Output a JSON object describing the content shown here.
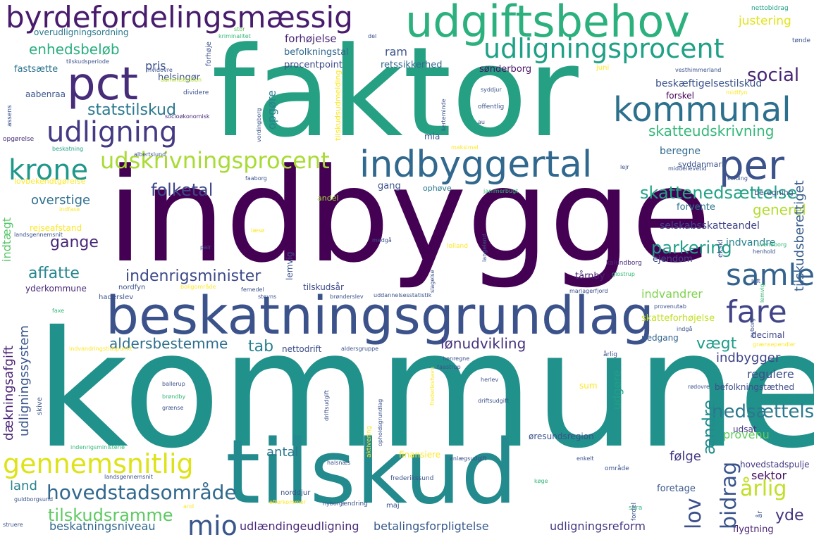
{
  "words": [
    {
      "text": "kommune",
      "color": "#21918c"
    },
    {
      "text": "indbygge",
      "color": "#440154"
    },
    {
      "text": "faktor",
      "color": "#26a083"
    },
    {
      "text": "tilskud",
      "color": "#238a8d"
    },
    {
      "text": "beskatningsgrundlag",
      "color": "#3b528b"
    },
    {
      "text": "udgiftsbehov",
      "color": "#2cb17e"
    },
    {
      "text": "byrdefordelingsmæssig",
      "color": "#481b6d"
    },
    {
      "text": "indbyggertal",
      "color": "#31688e"
    },
    {
      "text": "pct",
      "color": "#472c7a"
    },
    {
      "text": "udligningsprocent",
      "color": "#1fa187"
    },
    {
      "text": "kommunal",
      "color": "#2d708e"
    },
    {
      "text": "per",
      "color": "#3b528b"
    },
    {
      "text": "gennemsnitlig",
      "color": "#dde318"
    },
    {
      "text": "udskrivningsprocent",
      "color": "#a8db34"
    },
    {
      "text": "krone",
      "color": "#1f988b"
    },
    {
      "text": "udligning",
      "color": "#443a83"
    },
    {
      "text": "samle",
      "color": "#33638d"
    },
    {
      "text": "fare",
      "color": "#414487"
    },
    {
      "text": "mio",
      "color": "#39568c"
    },
    {
      "text": "hovedstadsområde",
      "color": "#31688e"
    },
    {
      "text": "statstilskud",
      "color": "#2a788e"
    },
    {
      "text": "social",
      "color": "#482475"
    },
    {
      "text": "nedsættelse",
      "color": "#2a788e"
    },
    {
      "text": "skattenedsættelse",
      "color": "#20a386"
    },
    {
      "text": "tilskudsramme",
      "color": "#5ec962"
    },
    {
      "text": "indenrigsminister",
      "color": "#3e4a89"
    },
    {
      "text": "skatteudskrivning",
      "color": "#35b779"
    },
    {
      "text": "folketal",
      "color": "#3f4788"
    },
    {
      "text": "parkering",
      "color": "#1f9e89"
    },
    {
      "text": "aldersbestemme",
      "color": "#2e6e8e"
    },
    {
      "text": "lønudvikling",
      "color": "#46327e"
    },
    {
      "text": "affatte",
      "color": "#24868e"
    },
    {
      "text": "gange",
      "color": "#482878"
    },
    {
      "text": "enhedsbeløb",
      "color": "#29af7f"
    },
    {
      "text": "bidrag",
      "color": "#3a548c"
    },
    {
      "text": "årlig",
      "color": "#c0df25"
    },
    {
      "text": "lov",
      "color": "#3c508b"
    },
    {
      "text": "ændre",
      "color": "#228c8d"
    },
    {
      "text": "tab",
      "color": "#26818e"
    },
    {
      "text": "vægt",
      "color": "#1e9c89"
    },
    {
      "text": "yde",
      "color": "#46337f"
    },
    {
      "text": "generel",
      "color": "#b2dd2d"
    },
    {
      "text": "overstige",
      "color": "#2e6f8e"
    },
    {
      "text": "forhøjelse",
      "color": "#482576"
    },
    {
      "text": "indbygger",
      "color": "#404688"
    },
    {
      "text": "regulere",
      "color": "#3d4e8a"
    },
    {
      "text": "land",
      "color": "#26828e"
    },
    {
      "text": "antal",
      "color": "#2a768e"
    },
    {
      "text": "følge",
      "color": "#443983"
    },
    {
      "text": "provenu",
      "color": "#62cb5f"
    },
    {
      "text": "sektor",
      "color": "#471063"
    },
    {
      "text": "ram",
      "color": "#3a538b"
    },
    {
      "text": "pris",
      "color": "#3b528b"
    },
    {
      "text": "justering",
      "color": "#e2e418"
    },
    {
      "text": "beregne",
      "color": "#30698e"
    },
    {
      "text": "udgøre",
      "color": "#1f9f88"
    },
    {
      "text": "selskabsskatteandel",
      "color": "#404588"
    },
    {
      "text": "tilskudsberettiget",
      "color": "#365d8d"
    },
    {
      "text": "dækningsafgift",
      "color": "#482173"
    },
    {
      "text": "udligningssystem",
      "color": "#39558c"
    },
    {
      "text": "indvandrer",
      "color": "#7fd34e"
    },
    {
      "text": "beskæftigelsestilskud",
      "color": "#3a538b"
    },
    {
      "text": "udlændingeudligning",
      "color": "#482979"
    },
    {
      "text": "betalingsforpligtelse",
      "color": "#38598c"
    },
    {
      "text": "udligningsreform",
      "color": "#453781"
    },
    {
      "text": "beskatningsniveau",
      "color": "#31678e"
    },
    {
      "text": "indtægt",
      "color": "#56c667"
    },
    {
      "text": "forskel",
      "color": "#440256"
    },
    {
      "text": "opgøre",
      "color": "#26828e"
    },
    {
      "text": "befolkningstal",
      "color": "#31678e"
    },
    {
      "text": "helsingør",
      "color": "#3b528b"
    },
    {
      "text": "fastsætte",
      "color": "#2c728e"
    },
    {
      "text": "aabenraa",
      "color": "#3a548c"
    },
    {
      "text": "procentpoint",
      "color": "#3e4c8a"
    },
    {
      "text": "retssikkerhed",
      "color": "#31688e"
    },
    {
      "text": "sønderborg",
      "color": "#471365"
    },
    {
      "text": "overudligningsordning",
      "color": "#2a768e"
    },
    {
      "text": "nettodrift",
      "color": "#3d4e8a"
    },
    {
      "text": "ophøve",
      "color": "#2a788e"
    },
    {
      "text": "gang",
      "color": "#3b528b"
    },
    {
      "text": "andel",
      "color": "#a5db36"
    },
    {
      "text": "forvente",
      "color": "#2a768e"
    },
    {
      "text": "ejendom",
      "color": "#3e4a89"
    },
    {
      "text": "indvandre",
      "color": "#26828e"
    },
    {
      "text": "tårnby",
      "color": "#482071"
    },
    {
      "text": "nedgang",
      "color": "#33638d"
    },
    {
      "text": "befolkningstæthed",
      "color": "#3e4c8a"
    },
    {
      "text": "udsat",
      "color": "#443983"
    },
    {
      "text": "foretage",
      "color": "#39568c"
    },
    {
      "text": "flygtning",
      "color": "#481f70"
    },
    {
      "text": "hovedstadspulje",
      "color": "#443a83"
    },
    {
      "text": "mia",
      "color": "#3b528b"
    },
    {
      "text": "rejseafstand",
      "color": "#fde725"
    },
    {
      "text": "yderkommune",
      "color": "#482878"
    },
    {
      "text": "tilskudsår",
      "color": "#3e4989"
    },
    {
      "text": "skatteforhøjelse",
      "color": "#c2df23"
    },
    {
      "text": "decimal",
      "color": "#404688"
    },
    {
      "text": "syddanmark",
      "color": "#3b528b"
    },
    {
      "text": "lovbekendtgørelse",
      "color": "#fde725"
    },
    {
      "text": "beregning",
      "color": "#3b528b"
    },
    {
      "text": "sum",
      "color": "#fde725"
    },
    {
      "text": "finansiere",
      "color": "#fde725"
    },
    {
      "text": "øresundsregion",
      "color": "#3b528b"
    },
    {
      "text": "kalundborg",
      "color": "#482878"
    },
    {
      "text": "opgørelse",
      "color": "#472c7a"
    },
    {
      "text": "nordfyn",
      "color": "#3b528b"
    },
    {
      "text": "haderslev",
      "color": "#3b528b"
    },
    {
      "text": "nettobidrag",
      "color": "#20a386"
    },
    {
      "text": "stor",
      "color": "#5ec962"
    },
    {
      "text": "kriminalitet",
      "color": "#35b779"
    },
    {
      "text": "del",
      "color": "#3b528b"
    },
    {
      "text": "tønde",
      "color": "#3b528b"
    },
    {
      "text": "indfase",
      "color": "#fde725"
    },
    {
      "text": "administration",
      "color": "#b5de2b"
    },
    {
      "text": "tilskudsperiode",
      "color": "#3b528b"
    },
    {
      "text": "tilskudsudmelding",
      "color": "#fde725"
    },
    {
      "text": "hvidovre",
      "color": "#3b528b"
    },
    {
      "text": "socioøkonomisk",
      "color": "#482878"
    },
    {
      "text": "vesthimmerland",
      "color": "#3b528b"
    },
    {
      "text": "juni",
      "color": "#fde725"
    },
    {
      "text": "syddjur",
      "color": "#3b528b"
    },
    {
      "text": "midtfyn",
      "color": "#fde725"
    },
    {
      "text": "offentlig",
      "color": "#3b528b"
    },
    {
      "text": "au",
      "color": "#3b528b"
    },
    {
      "text": "dividere",
      "color": "#3b528b"
    },
    {
      "text": "forhøje",
      "color": "#3b528b"
    },
    {
      "text": "vordingborg",
      "color": "#3b528b"
    },
    {
      "text": "kerteminde",
      "color": "#3b528b"
    },
    {
      "text": "maksimal",
      "color": "#fde725"
    },
    {
      "text": "beskatning",
      "color": "#1fa187"
    },
    {
      "text": "albertslund",
      "color": "#3b528b"
    },
    {
      "text": "middellevetid",
      "color": "#3b528b"
    },
    {
      "text": "lejr",
      "color": "#3b528b"
    },
    {
      "text": "faaborg",
      "color": "#3b528b"
    },
    {
      "text": "kolding",
      "color": "#3b528b"
    },
    {
      "text": "jammerbugt",
      "color": "#35b779"
    },
    {
      "text": "læsø",
      "color": "#fde725"
    },
    {
      "text": "landsgennemsnit",
      "color": "#3b528b"
    },
    {
      "text": "pair",
      "color": "#3b528b"
    },
    {
      "text": "medgå",
      "color": "#3b528b"
    },
    {
      "text": "lolland",
      "color": "#fde725"
    },
    {
      "text": "langeland",
      "color": "#3b528b"
    },
    {
      "text": "henhold",
      "color": "#3b528b"
    },
    {
      "text": "svendborg",
      "color": "#35b779"
    },
    {
      "text": "glostrup",
      "color": "#35b779"
    },
    {
      "text": "boligområde",
      "color": "#fde725"
    },
    {
      "text": "femedel",
      "color": "#3b528b"
    },
    {
      "text": "stevns",
      "color": "#3b528b"
    },
    {
      "text": "brønderslev",
      "color": "#3b528b"
    },
    {
      "text": "uddannelsesstatistik",
      "color": "#3b528b"
    },
    {
      "text": "slagelse",
      "color": "#3b528b"
    },
    {
      "text": "mariagerfjord",
      "color": "#3b528b"
    },
    {
      "text": "loft",
      "color": "#3b528b"
    },
    {
      "text": "lemvig",
      "color": "#35b779"
    },
    {
      "text": "provenutab",
      "color": "#3b528b"
    },
    {
      "text": "indgå",
      "color": "#3b528b"
    },
    {
      "text": "faxe",
      "color": "#35b779"
    },
    {
      "text": "indvandringstidspunkt",
      "color": "#fde725"
    },
    {
      "text": "aldersgruppe",
      "color": "#3b528b"
    },
    {
      "text": "grænsependler",
      "color": "#fde725"
    },
    {
      "text": "henregne",
      "color": "#3b528b"
    },
    {
      "text": "taastrup",
      "color": "#3b528b"
    },
    {
      "text": "herlev",
      "color": "#3b528b"
    },
    {
      "text": "frederikshavn",
      "color": "#fde725"
    },
    {
      "text": "opholdsgrundlag",
      "color": "#3b528b"
    },
    {
      "text": "driftsudgift",
      "color": "#3b528b"
    },
    {
      "text": "ballerup",
      "color": "#3b528b"
    },
    {
      "text": "brøndby",
      "color": "#3b528b"
    },
    {
      "text": "grænse",
      "color": "#35b779"
    },
    {
      "text": "rødovre",
      "color": "#3b528b"
    },
    {
      "text": "skive",
      "color": "#3b528b"
    },
    {
      "text": "indenrigsministerie",
      "color": "#3b528b"
    },
    {
      "text": "halsnæs",
      "color": "#35b779"
    },
    {
      "text": "aktivering",
      "color": "#3b528b"
    },
    {
      "text": "anlægsudgift",
      "color": "#fde725"
    },
    {
      "text": "enkelt",
      "color": "#3b528b"
    },
    {
      "text": "område",
      "color": "#3b528b"
    },
    {
      "text": "frederikssund",
      "color": "#3b528b"
    },
    {
      "text": "køge",
      "color": "#3b528b"
    },
    {
      "text": "sora",
      "color": "#35b779"
    },
    {
      "text": "norddjur",
      "color": "#35b779"
    },
    {
      "text": "ændring",
      "color": "#3b528b"
    },
    {
      "text": "nyborg",
      "color": "#3b528b"
    },
    {
      "text": "maj",
      "color": "#3b528b"
    },
    {
      "text": "and",
      "color": "#3b528b"
    },
    {
      "text": "efterkommer",
      "color": "#fde725"
    },
    {
      "text": "guldborgsund",
      "color": "#fde725"
    },
    {
      "text": "struere",
      "color": "#3b528b"
    },
    {
      "text": "assens",
      "color": "#3b528b"
    },
    {
      "text": "fordel",
      "color": "#3b528b"
    },
    {
      "text": "år",
      "color": "#3b528b"
    },
    {
      "text": "ekskl",
      "color": "#3b528b"
    },
    {
      "text": "onlagning",
      "color": "#3b528b"
    }
  ]
}
